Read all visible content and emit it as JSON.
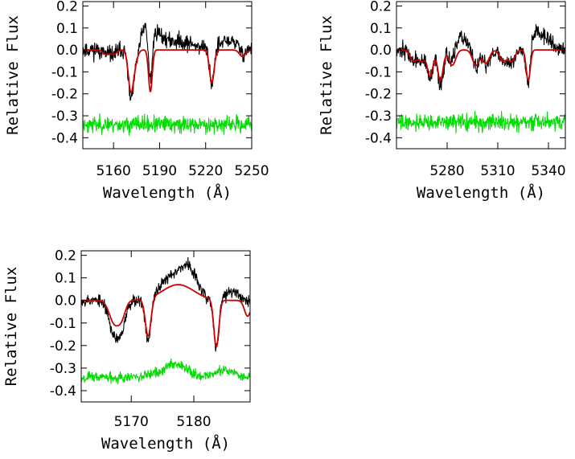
{
  "chart_data": [
    {
      "type": "line",
      "xlabel": "Wavelength (Å)",
      "ylabel": "Relative Flux",
      "xlim": [
        5140,
        5250
      ],
      "ylim": [
        -0.45,
        0.22
      ],
      "xticks": [
        5160,
        5190,
        5220,
        5250
      ],
      "yticks": [
        0.2,
        0.1,
        0.0,
        -0.1,
        -0.2,
        -0.3,
        -0.4
      ],
      "ytick_labels": [
        "0.2",
        "0.1",
        "0.0",
        "-0.1",
        "-0.2",
        "-0.3",
        "-0.4"
      ],
      "series": [
        {
          "color": "#000000",
          "role": "observed",
          "seed": 11,
          "noise": 0.035,
          "features": [
            [
              5155,
              0.02,
              2
            ],
            [
              5160,
              0.02,
              2
            ],
            [
              5171,
              0.16,
              1.6
            ],
            [
              5173,
              0.1,
              2
            ],
            [
              5184,
              0.21,
              1.2
            ],
            [
              5224,
              0.16,
              1.5
            ],
            [
              5244,
              0.03,
              2
            ]
          ],
          "bumps": [
            [
              5180,
              0.08,
              2
            ],
            [
              5187,
              0.06,
              4
            ],
            [
              5200,
              0.04,
              12
            ],
            [
              5236,
              0.04,
              6
            ]
          ]
        },
        {
          "color": "#cc0000",
          "role": "model",
          "features": [
            [
              5155,
              0.02,
              2
            ],
            [
              5160,
              0.02,
              2
            ],
            [
              5171,
              0.14,
              1.6
            ],
            [
              5173,
              0.08,
              2
            ],
            [
              5184,
              0.19,
              1.2
            ],
            [
              5224,
              0.15,
              1.5
            ],
            [
              5244,
              0.03,
              2
            ]
          ],
          "bumps": []
        },
        {
          "color": "#00dd00",
          "role": "residual",
          "seed": 23,
          "noise": 0.035,
          "offset": -0.34
        }
      ]
    },
    {
      "type": "line",
      "xlabel": "Wavelength (Å)",
      "ylabel": "Relative Flux",
      "xlim": [
        5250,
        5350
      ],
      "ylim": [
        -0.45,
        0.22
      ],
      "xticks": [
        5280,
        5310,
        5340
      ],
      "yticks": [
        0.2,
        0.1,
        0.0,
        -0.1,
        -0.2,
        -0.3,
        -0.4
      ],
      "ytick_labels": [
        "0.2",
        "0.1",
        "0.0",
        "-0.1",
        "-0.2",
        "-0.3",
        "-0.4"
      ],
      "series": [
        {
          "color": "#000000",
          "role": "observed",
          "seed": 37,
          "noise": 0.035,
          "features": [
            [
              5260,
              0.05,
              2
            ],
            [
              5265,
              0.05,
              2
            ],
            [
              5270,
              0.14,
              1.6
            ],
            [
              5276,
              0.16,
              1.6
            ],
            [
              5283,
              0.08,
              2
            ],
            [
              5297,
              0.08,
              2
            ],
            [
              5303,
              0.07,
              2
            ],
            [
              5313,
              0.05,
              2
            ],
            [
              5318,
              0.06,
              2
            ],
            [
              5328,
              0.18,
              1.2
            ]
          ],
          "bumps": [
            [
              5288,
              0.06,
              4
            ],
            [
              5332,
              0.08,
              3
            ],
            [
              5339,
              0.05,
              3
            ]
          ]
        },
        {
          "color": "#cc0000",
          "role": "model",
          "features": [
            [
              5260,
              0.05,
              2
            ],
            [
              5265,
              0.05,
              2
            ],
            [
              5270,
              0.12,
              1.6
            ],
            [
              5276,
              0.14,
              1.6
            ],
            [
              5283,
              0.07,
              2
            ],
            [
              5297,
              0.07,
              2
            ],
            [
              5303,
              0.06,
              2
            ],
            [
              5313,
              0.05,
              2
            ],
            [
              5318,
              0.05,
              2
            ],
            [
              5328,
              0.14,
              1.2
            ]
          ],
          "bumps": []
        },
        {
          "color": "#00dd00",
          "role": "residual",
          "seed": 41,
          "noise": 0.035,
          "offset": -0.33
        }
      ]
    },
    {
      "type": "line",
      "xlabel": "Wavelength (Å)",
      "ylabel": "Relative Flux",
      "xlim": [
        5162,
        5189
      ],
      "ylim": [
        -0.45,
        0.22
      ],
      "xticks": [
        5170,
        5180
      ],
      "yticks": [
        0.2,
        0.1,
        0.0,
        -0.1,
        -0.2,
        -0.3,
        -0.4
      ],
      "ytick_labels": [
        "0.2",
        "0.1",
        "0.0",
        "-0.1",
        "-0.2",
        "-0.3",
        "-0.4"
      ],
      "series": [
        {
          "color": "#000000",
          "role": "observed",
          "seed": 53,
          "noise": 0.025,
          "features": [
            [
              5167.3,
              0.15,
              0.8
            ],
            [
              5168.5,
              0.1,
              0.6
            ],
            [
              5172.7,
              0.19,
              0.45
            ],
            [
              5183.6,
              0.22,
              0.4
            ]
          ],
          "bumps": [
            [
              5177,
              0.12,
              2
            ],
            [
              5179.5,
              0.09,
              1.2
            ],
            [
              5186,
              0.04,
              1
            ]
          ]
        },
        {
          "color": "#cc0000",
          "role": "model",
          "features": [
            [
              5167.3,
              0.1,
              0.8
            ],
            [
              5168.5,
              0.06,
              0.6
            ],
            [
              5172.7,
              0.17,
              0.45
            ],
            [
              5183.6,
              0.21,
              0.4
            ],
            [
              5188.6,
              0.07,
              0.5
            ]
          ],
          "bumps": [
            [
              5177.5,
              0.07,
              2.5
            ]
          ]
        },
        {
          "color": "#00dd00",
          "role": "residual",
          "seed": 67,
          "noise": 0.022,
          "offset": -0.34,
          "bumps": [
            [
              5177,
              0.06,
              2
            ],
            [
              5185,
              0.03,
              1.5
            ]
          ]
        }
      ]
    }
  ]
}
